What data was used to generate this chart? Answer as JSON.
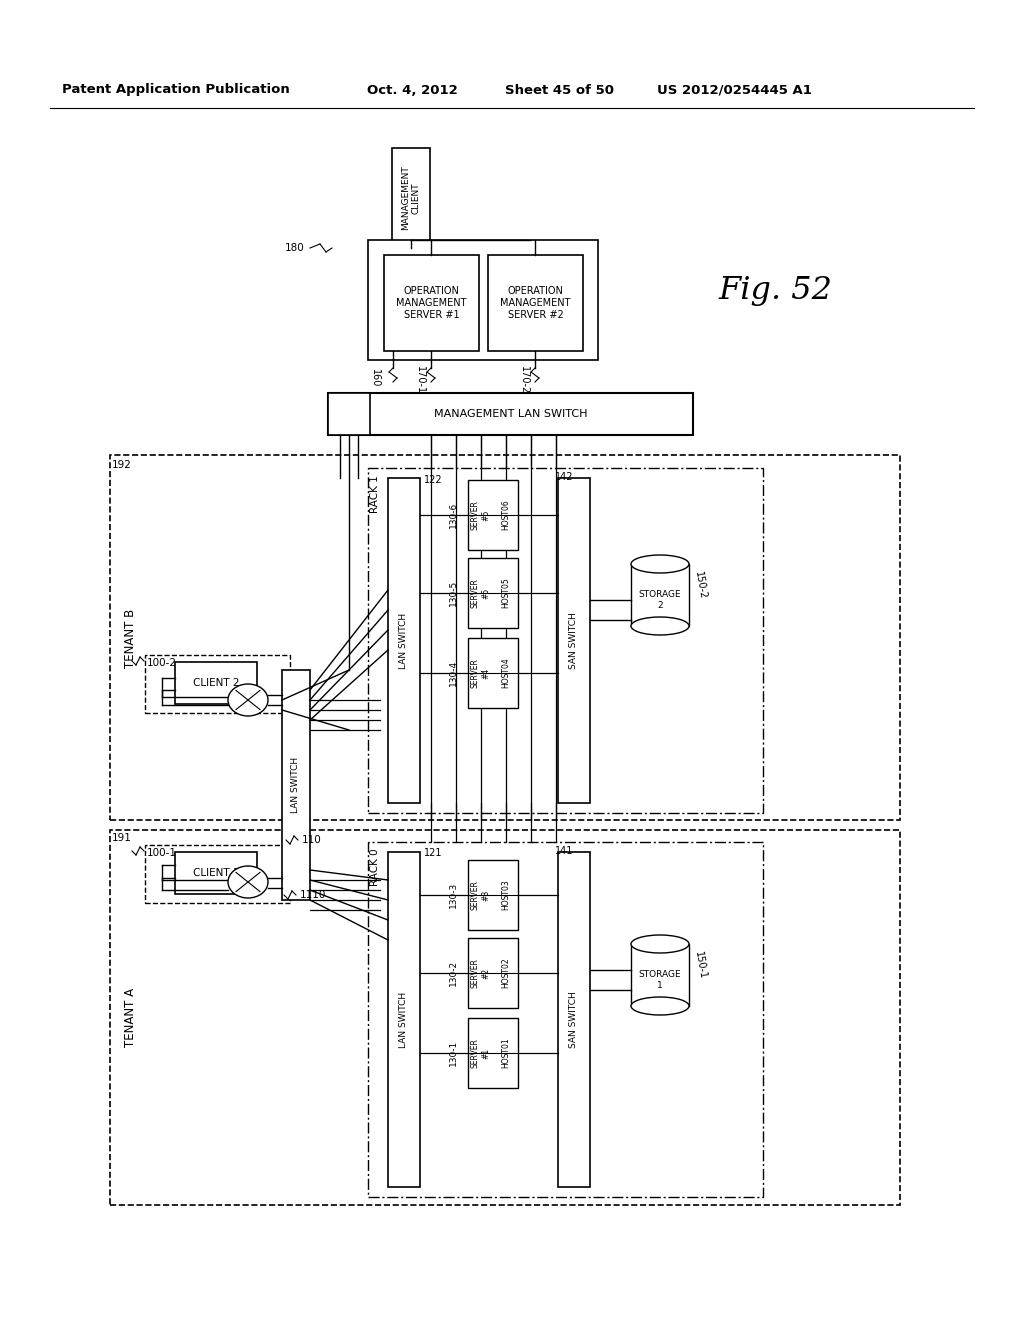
{
  "bg_color": "#ffffff",
  "header_text": "Patent Application Publication",
  "header_date": "Oct. 4, 2012",
  "header_sheet": "Sheet 45 of 50",
  "header_patent": "US 2012/0254445 A1",
  "fig_label": "Fig. 52"
}
